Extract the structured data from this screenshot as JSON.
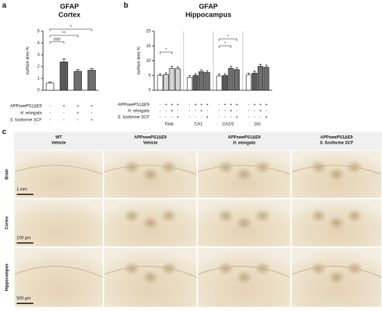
{
  "panel_labels": [
    "a",
    "b",
    "c"
  ],
  "chart_data": [
    {
      "type": "bar",
      "title": "GFAP",
      "subtitle": "Cortex",
      "y_label": "surface area %",
      "categories": [
        null,
        null,
        null,
        null
      ],
      "series": [
        {
          "values": [
            0.6,
            2.4,
            1.6,
            1.7
          ],
          "errors": [
            0.1,
            0.25,
            0.15,
            0.15
          ],
          "colors": [
            "#ffffff",
            "#5a5a5a",
            "#6e6e6e",
            "#6e6e6e"
          ]
        }
      ],
      "ylim": [
        0,
        5
      ],
      "yticks": [
        0,
        1,
        2,
        3,
        4,
        5
      ],
      "annotations": [
        "###",
        "**",
        "*"
      ],
      "treatments": [
        {
          "name": "APPswePS1ΔE9",
          "signs": [
            "-",
            "+",
            "+",
            "+"
          ]
        },
        {
          "name": "H. elongata",
          "signs": [
            "-",
            "-",
            "+",
            "-"
          ]
        },
        {
          "name": "S. fusiforme SCF",
          "signs": [
            "-",
            "-",
            "-",
            "+"
          ]
        }
      ]
    },
    {
      "type": "bar",
      "title": "GFAP",
      "subtitle": "Hippocampus",
      "y_label": "surface area %",
      "categories": [
        "Total",
        "CA1",
        "CA2/3",
        "DG"
      ],
      "series": [
        {
          "values": [
            5.0,
            4.3,
            4.8,
            5.2
          ],
          "errors": [
            0.6,
            0.7,
            0.7,
            0.6
          ],
          "colors": [
            "#ffffff",
            "#ffffff",
            "#ffffff",
            "#ffffff"
          ]
        },
        {
          "values": [
            5.3,
            5.0,
            5.0,
            5.8
          ],
          "errors": [
            0.6,
            0.6,
            0.6,
            0.7
          ],
          "colors": [
            "#d4d4d4",
            "#5a5a5a",
            "#5a5a5a",
            "#5a5a5a"
          ]
        },
        {
          "values": [
            7.4,
            6.3,
            7.4,
            8.1
          ],
          "errors": [
            0.7,
            0.6,
            0.7,
            0.7
          ],
          "colors": [
            "#d4d4d4",
            "#6e6e6e",
            "#6e6e6e",
            "#6e6e6e"
          ]
        },
        {
          "values": [
            7.3,
            6.0,
            7.0,
            7.8
          ],
          "errors": [
            0.6,
            0.6,
            0.6,
            0.7
          ],
          "colors": [
            "#d4d4d4",
            "#6e6e6e",
            "#6e6e6e",
            "#6e6e6e"
          ]
        }
      ],
      "ylim": [
        0,
        20
      ],
      "yticks": [
        0,
        5,
        10,
        15,
        20
      ],
      "annotations": [
        "*",
        "*",
        "*"
      ],
      "treatments": [
        {
          "name": "APPswePS1ΔE9",
          "signs": [
            "-",
            "+",
            "+",
            "+",
            "-",
            "+",
            "+",
            "+",
            "-",
            "+",
            "+",
            "+",
            "-",
            "+",
            "+",
            "+"
          ]
        },
        {
          "name": "H. elongata",
          "signs": [
            "-",
            "-",
            "+",
            "-",
            "-",
            "-",
            "+",
            "-",
            "-",
            "-",
            "+",
            "-",
            "-",
            "-",
            "+",
            "-"
          ]
        },
        {
          "name": "S. fusiforme SCF",
          "signs": [
            "-",
            "-",
            "-",
            "+",
            "-",
            "-",
            "-",
            "+",
            "-",
            "-",
            "-",
            "+",
            "-",
            "-",
            "-",
            "+"
          ]
        }
      ]
    }
  ],
  "micrographs": {
    "columns": [
      [
        "WT",
        "Vehicle"
      ],
      [
        "APPswePS1ΔE9",
        "Vehicle"
      ],
      [
        "APPswePS1ΔE9",
        "H. elongata"
      ],
      [
        "APPswePS1ΔE9",
        "S. fusiforme SCF"
      ]
    ],
    "rows": [
      "Brain",
      "Cortex",
      "Hippocampus"
    ],
    "scale_bars": [
      "1 mm",
      "100 μm",
      "500 μm"
    ]
  }
}
